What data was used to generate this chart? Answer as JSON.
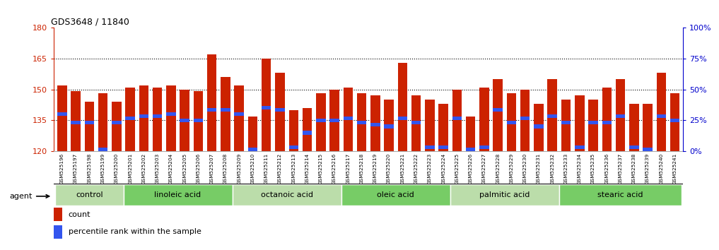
{
  "title": "GDS3648 / 11840",
  "samples": [
    "GSM525196",
    "GSM525197",
    "GSM525198",
    "GSM525199",
    "GSM525200",
    "GSM525201",
    "GSM525202",
    "GSM525203",
    "GSM525204",
    "GSM525205",
    "GSM525206",
    "GSM525207",
    "GSM525208",
    "GSM525209",
    "GSM525210",
    "GSM525211",
    "GSM525212",
    "GSM525213",
    "GSM525214",
    "GSM525215",
    "GSM525216",
    "GSM525217",
    "GSM525218",
    "GSM525219",
    "GSM525220",
    "GSM525221",
    "GSM525222",
    "GSM525223",
    "GSM525224",
    "GSM525225",
    "GSM525226",
    "GSM525227",
    "GSM525228",
    "GSM525229",
    "GSM525230",
    "GSM525231",
    "GSM525232",
    "GSM525233",
    "GSM525234",
    "GSM525235",
    "GSM525236",
    "GSM525237",
    "GSM525238",
    "GSM525239",
    "GSM525240",
    "GSM525241"
  ],
  "bar_heights": [
    152,
    149,
    144,
    148,
    144,
    151,
    152,
    151,
    152,
    150,
    149,
    167,
    156,
    152,
    137,
    165,
    158,
    140,
    141,
    148,
    150,
    151,
    148,
    147,
    145,
    163,
    147,
    145,
    143,
    150,
    137,
    151,
    155,
    148,
    150,
    143,
    155,
    145,
    147,
    145,
    151,
    155,
    143,
    143,
    158,
    148
  ],
  "blue_marker_heights": [
    138,
    134,
    134,
    121,
    134,
    136,
    137,
    137,
    138,
    135,
    135,
    140,
    140,
    138,
    121,
    141,
    140,
    122,
    129,
    135,
    135,
    136,
    134,
    133,
    132,
    136,
    134,
    122,
    122,
    136,
    121,
    122,
    140,
    134,
    136,
    132,
    137,
    134,
    122,
    134,
    134,
    137,
    122,
    121,
    137,
    135
  ],
  "groups": [
    {
      "label": "control",
      "start": 0,
      "end": 5
    },
    {
      "label": "linoleic acid",
      "start": 5,
      "end": 13
    },
    {
      "label": "octanoic acid",
      "start": 13,
      "end": 21
    },
    {
      "label": "oleic acid",
      "start": 21,
      "end": 29
    },
    {
      "label": "palmitic acid",
      "start": 29,
      "end": 37
    },
    {
      "label": "stearic acid",
      "start": 37,
      "end": 46
    }
  ],
  "bar_color": "#cc2200",
  "blue_color": "#3355ee",
  "ymin": 120,
  "ymax": 180,
  "yticks": [
    120,
    135,
    150,
    165,
    180
  ],
  "right_yticks": [
    0,
    25,
    50,
    75,
    100
  ],
  "right_ylabels": [
    "0%",
    "25%",
    "50%",
    "75%",
    "100%"
  ],
  "left_axis_color": "#cc2200",
  "right_axis_color": "#0000cc",
  "group_colors_alt": [
    "#bbddaa",
    "#77cc66"
  ],
  "sample_bg_color": "#cccccc"
}
